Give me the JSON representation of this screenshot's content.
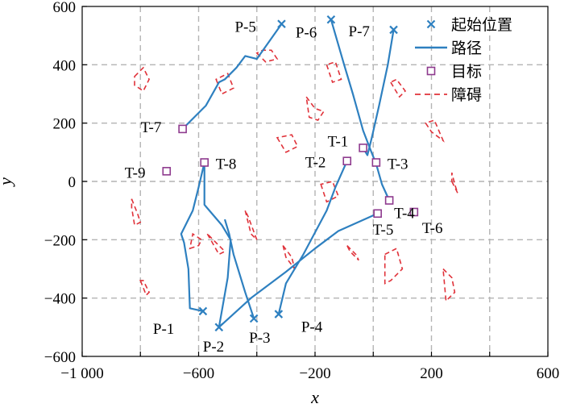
{
  "chart_data": {
    "type": "scatter",
    "xlabel": "x",
    "ylabel": "y",
    "xlim": [
      -1000,
      600
    ],
    "ylim": [
      -600,
      600
    ],
    "x_ticks": [
      -1000,
      -800,
      -600,
      -400,
      -200,
      0,
      200,
      400,
      600
    ],
    "y_ticks": [
      -600,
      -400,
      -200,
      0,
      200,
      400,
      600
    ],
    "x_tick_labels": [
      "−1 000",
      "",
      "−600",
      "",
      "−200",
      "",
      "200",
      "",
      "600"
    ],
    "y_tick_labels": [
      "−600",
      "−400",
      "−200",
      "0",
      "200",
      "400",
      "600"
    ],
    "grid": true,
    "legend_position": "top-right",
    "legend": [
      {
        "label": "起始位置",
        "kind": "cross"
      },
      {
        "label": "路径",
        "kind": "line"
      },
      {
        "label": "目标",
        "kind": "square"
      },
      {
        "label": "障碍",
        "kind": "dashed"
      }
    ],
    "colors": {
      "path": "#2e80c0",
      "start": "#2e80c0",
      "target": "#8e3a8e",
      "obstacle": "#e0323a",
      "grid": "#b4b4b4"
    },
    "starts": [
      {
        "label": "P-1",
        "x": -585,
        "y": -445
      },
      {
        "label": "P-2",
        "x": -530,
        "y": -500
      },
      {
        "label": "P-3",
        "x": -410,
        "y": -470
      },
      {
        "label": "P-4",
        "x": -325,
        "y": -455
      },
      {
        "label": "P-5",
        "x": -315,
        "y": 540
      },
      {
        "label": "P-6",
        "x": -145,
        "y": 555
      },
      {
        "label": "P-7",
        "x": 70,
        "y": 520
      }
    ],
    "targets": [
      {
        "label": "T-1",
        "x": -35,
        "y": 115
      },
      {
        "label": "T-2",
        "x": -90,
        "y": 70
      },
      {
        "label": "T-3",
        "x": 10,
        "y": 65
      },
      {
        "label": "T-4",
        "x": 55,
        "y": -65
      },
      {
        "label": "T-5",
        "x": 15,
        "y": -110
      },
      {
        "label": "T-6",
        "x": 140,
        "y": -105
      },
      {
        "label": "T-7",
        "x": -655,
        "y": 180
      },
      {
        "label": "T-8",
        "x": -580,
        "y": 65
      },
      {
        "label": "T-9",
        "x": -710,
        "y": 35
      }
    ],
    "paths": [
      {
        "name": "P-1",
        "points": [
          [
            -585,
            -445
          ],
          [
            -630,
            -435
          ],
          [
            -635,
            -300
          ],
          [
            -650,
            -210
          ],
          [
            -660,
            -180
          ],
          [
            -620,
            -100
          ],
          [
            -600,
            -20
          ],
          [
            -580,
            65
          ]
        ]
      },
      {
        "name": "P-2",
        "points": [
          [
            -530,
            -500
          ],
          [
            -500,
            -330
          ],
          [
            -490,
            -200
          ],
          [
            -520,
            -150
          ],
          [
            -580,
            -80
          ],
          [
            -580,
            65
          ]
        ]
      },
      {
        "name": "P-3",
        "points": [
          [
            -410,
            -470
          ],
          [
            -440,
            -380
          ],
          [
            -480,
            -250
          ],
          [
            -495,
            -180
          ],
          [
            -510,
            -130
          ]
        ]
      },
      {
        "name": "P-4",
        "points": [
          [
            -325,
            -455
          ],
          [
            -300,
            -350
          ],
          [
            -240,
            -250
          ],
          [
            -160,
            -100
          ],
          [
            -130,
            -20
          ],
          [
            -90,
            70
          ]
        ]
      },
      {
        "name": "P-5",
        "points": [
          [
            -315,
            540
          ],
          [
            -400,
            420
          ],
          [
            -440,
            430
          ],
          [
            -470,
            390
          ],
          [
            -510,
            350
          ],
          [
            -530,
            340
          ],
          [
            -575,
            260
          ],
          [
            -655,
            180
          ]
        ]
      },
      {
        "name": "P-6",
        "points": [
          [
            -145,
            555
          ],
          [
            -100,
            400
          ],
          [
            -70,
            300
          ],
          [
            -35,
            175
          ],
          [
            -10,
            110
          ],
          [
            10,
            60
          ],
          [
            30,
            -10
          ],
          [
            55,
            -65
          ]
        ]
      },
      {
        "name": "P-7",
        "points": [
          [
            70,
            520
          ],
          [
            50,
            400
          ],
          [
            20,
            260
          ],
          [
            -5,
            150
          ],
          [
            -20,
            90
          ],
          [
            -35,
            115
          ]
        ]
      },
      {
        "name": "P-2 extension",
        "points": [
          [
            -530,
            -500
          ],
          [
            -420,
            -400
          ],
          [
            -300,
            -310
          ],
          [
            -200,
            -230
          ],
          [
            -120,
            -170
          ],
          [
            15,
            -110
          ]
        ]
      }
    ],
    "obstacles": [
      [
        [
          -820,
          360
        ],
        [
          -790,
          390
        ],
        [
          -770,
          350
        ],
        [
          -790,
          310
        ],
        [
          -820,
          330
        ]
      ],
      [
        [
          -540,
          350
        ],
        [
          -520,
          300
        ],
        [
          -480,
          320
        ],
        [
          -500,
          370
        ]
      ],
      [
        [
          -400,
          440
        ],
        [
          -370,
          410
        ],
        [
          -330,
          420
        ],
        [
          -350,
          450
        ],
        [
          -380,
          450
        ]
      ],
      [
        [
          -230,
          290
        ],
        [
          -200,
          250
        ],
        [
          -170,
          240
        ],
        [
          -190,
          210
        ],
        [
          -220,
          220
        ]
      ],
      [
        [
          -160,
          400
        ],
        [
          -140,
          340
        ],
        [
          -110,
          350
        ],
        [
          -130,
          410
        ]
      ],
      [
        [
          -330,
          150
        ],
        [
          -300,
          100
        ],
        [
          -260,
          120
        ],
        [
          -280,
          160
        ]
      ],
      [
        [
          -180,
          -10
        ],
        [
          -160,
          -70
        ],
        [
          -120,
          -50
        ],
        [
          -140,
          0
        ]
      ],
      [
        [
          60,
          340
        ],
        [
          90,
          290
        ],
        [
          110,
          310
        ],
        [
          80,
          350
        ]
      ],
      [
        [
          180,
          200
        ],
        [
          200,
          170
        ],
        [
          240,
          140
        ],
        [
          210,
          210
        ]
      ],
      [
        [
          270,
          0
        ],
        [
          290,
          -40
        ],
        [
          280,
          -10
        ],
        [
          270,
          30
        ]
      ],
      [
        [
          -830,
          -60
        ],
        [
          -810,
          -110
        ],
        [
          -800,
          -140
        ],
        [
          -820,
          -150
        ],
        [
          -830,
          -90
        ]
      ],
      [
        [
          -440,
          -100
        ],
        [
          -420,
          -180
        ],
        [
          -400,
          -200
        ],
        [
          -430,
          -120
        ]
      ],
      [
        [
          -570,
          -180
        ],
        [
          -530,
          -250
        ],
        [
          -510,
          -240
        ],
        [
          -550,
          -200
        ]
      ],
      [
        [
          -630,
          -230
        ],
        [
          -600,
          -220
        ],
        [
          -590,
          -200
        ],
        [
          -620,
          -180
        ]
      ],
      [
        [
          -310,
          -220
        ],
        [
          -280,
          -260
        ],
        [
          -270,
          -300
        ],
        [
          -300,
          -260
        ]
      ],
      [
        [
          -90,
          -220
        ],
        [
          -60,
          -250
        ],
        [
          -50,
          -270
        ],
        [
          -80,
          -240
        ]
      ],
      [
        [
          40,
          -250
        ],
        [
          80,
          -230
        ],
        [
          100,
          -300
        ],
        [
          60,
          -340
        ],
        [
          40,
          -350
        ]
      ],
      [
        [
          -800,
          -340
        ],
        [
          -780,
          -390
        ],
        [
          -770,
          -380
        ],
        [
          -790,
          -340
        ]
      ],
      [
        [
          240,
          -300
        ],
        [
          270,
          -330
        ],
        [
          280,
          -380
        ],
        [
          250,
          -410
        ]
      ]
    ]
  }
}
